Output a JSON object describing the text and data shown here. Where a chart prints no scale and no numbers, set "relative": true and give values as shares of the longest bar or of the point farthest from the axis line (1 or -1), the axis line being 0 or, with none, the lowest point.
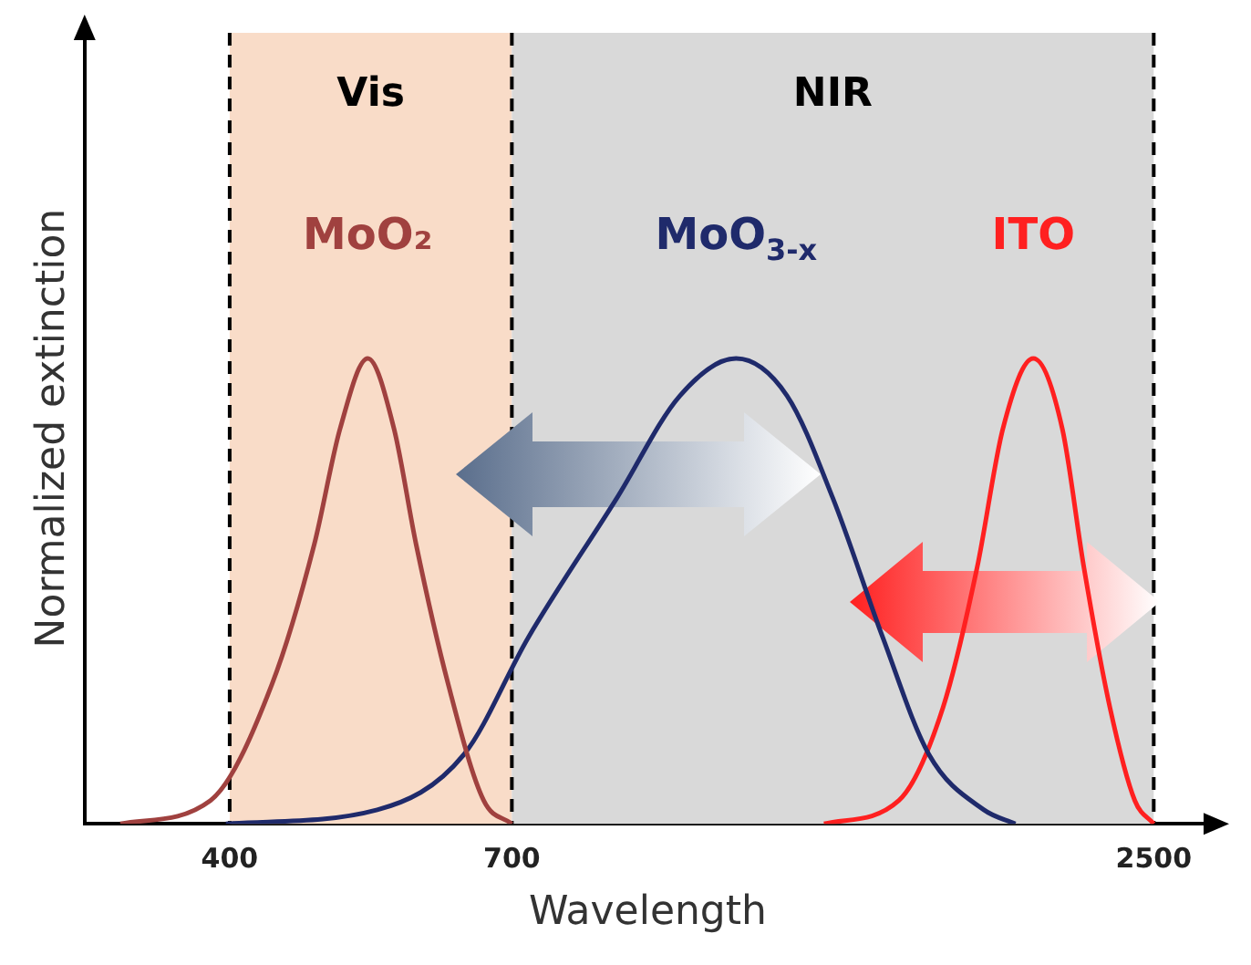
{
  "chart_data": {
    "type": "line",
    "xlabel": "Wavelength",
    "ylabel": "Normalized extinction",
    "relative": true,
    "log": "x",
    "xlim": [
      300,
      2800
    ],
    "xticks": [
      400,
      700,
      2500
    ],
    "grid": false,
    "legend": false,
    "marker": "none",
    "ref_lines": [
      {
        "axis": "x",
        "value": 400,
        "line_style": "dashed",
        "color": "#000000"
      },
      {
        "axis": "x",
        "value": 700,
        "line_style": "dashed",
        "color": "#000000"
      },
      {
        "axis": "x",
        "value": 2500,
        "line_style": "dashed",
        "color": "#000000"
      }
    ],
    "bands": [
      {
        "axis": "x",
        "from": 400,
        "to": 700,
        "label": "Vis",
        "color": "#f9dcc8"
      },
      {
        "axis": "x",
        "from": 700,
        "to": 2500,
        "label": "NIR",
        "color": "#d9d9d9"
      }
    ],
    "series": [
      {
        "name": "MoO₂",
        "color": "#a0413f",
        "x": [
          322,
          385,
          435,
          473,
          498,
          526,
          554,
          579,
          617,
          662,
          700
        ],
        "values": [
          0,
          0.05,
          0.3,
          0.6,
          0.85,
          1,
          0.85,
          0.6,
          0.3,
          0.05,
          0
        ]
      },
      {
        "name": "MoO$_{3-x}$",
        "color": "#1f2a6b",
        "x": [
          397,
          536,
          637,
          723,
          862,
          977,
          1092,
          1208,
          1323,
          1461,
          1600,
          1785,
          1900
        ],
        "values": [
          0,
          0.03,
          0.15,
          0.4,
          0.7,
          0.92,
          1,
          0.92,
          0.7,
          0.4,
          0.15,
          0.03,
          0
        ]
      },
      {
        "name": "ITO",
        "color": "#ff2020",
        "x": [
          1300,
          1508,
          1646,
          1761,
          1854,
          1969,
          2085,
          2177,
          2292,
          2408,
          2500
        ],
        "values": [
          0,
          0.05,
          0.25,
          0.55,
          0.85,
          1,
          0.85,
          0.55,
          0.25,
          0.05,
          0
        ]
      }
    ]
  }
}
